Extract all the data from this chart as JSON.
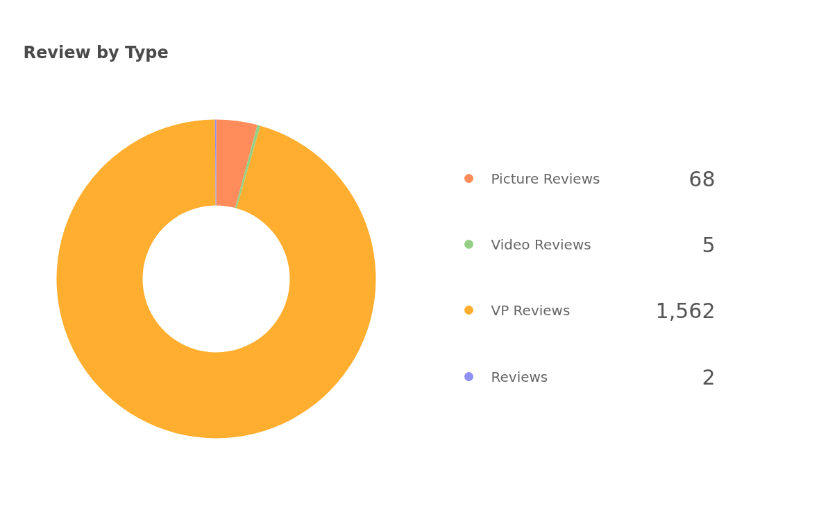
{
  "chart_data": {
    "type": "donut",
    "title": "Review by Type",
    "categories": [
      "Picture Reviews",
      "Video Reviews",
      "VP Reviews",
      "Reviews"
    ],
    "values": [
      68,
      5,
      1562,
      2
    ],
    "colors": [
      "#ff8c5a",
      "#95cf86",
      "#ffae2f",
      "#8f8ff5"
    ],
    "value_labels": [
      "68",
      "5",
      "1,562",
      "2"
    ],
    "legend": "right"
  }
}
